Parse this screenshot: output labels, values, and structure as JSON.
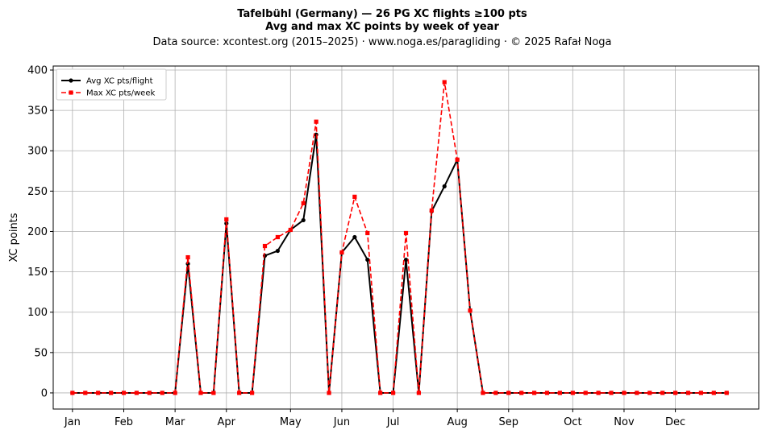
{
  "chart_data": {
    "type": "line",
    "title_line1": "Tafelbühl (Germany)  —  26 PG XC flights ≥100 pts",
    "title_line2": "Avg and max XC points by week of year",
    "subtitle": "Data source: xcontest.org (2015–2025)  ·  www.noga.es/paragliding  ·  © 2025 Rafał Noga",
    "xlabel": "",
    "ylabel": "XC points",
    "ylim": [
      -20,
      405
    ],
    "xlim_weeks": [
      -1.5,
      53.5
    ],
    "y_ticks": [
      0,
      50,
      100,
      150,
      200,
      250,
      300,
      350,
      400
    ],
    "x_ticks": [
      {
        "week": 0,
        "label": "Jan"
      },
      {
        "week": 4,
        "label": "Feb"
      },
      {
        "week": 8,
        "label": "Mar"
      },
      {
        "week": 12,
        "label": "Apr"
      },
      {
        "week": 17,
        "label": "May"
      },
      {
        "week": 21,
        "label": "Jun"
      },
      {
        "week": 25,
        "label": "Jul"
      },
      {
        "week": 30,
        "label": "Aug"
      },
      {
        "week": 34,
        "label": "Sep"
      },
      {
        "week": 39,
        "label": "Oct"
      },
      {
        "week": 43,
        "label": "Nov"
      },
      {
        "week": 47,
        "label": "Dec"
      }
    ],
    "grid": true,
    "legend_position": "top-left",
    "series": [
      {
        "name": "Avg XC pts/flight",
        "color": "#000000",
        "line_style": "solid",
        "marker": "circle",
        "x": [
          0,
          1,
          2,
          3,
          4,
          5,
          6,
          7,
          8,
          9,
          10,
          11,
          12,
          13,
          14,
          15,
          16,
          17,
          18,
          19,
          20,
          21,
          22,
          23,
          24,
          25,
          26,
          27,
          28,
          29,
          30,
          31,
          32,
          33,
          34,
          35,
          36,
          37,
          38,
          39,
          40,
          41,
          42,
          43,
          44,
          45,
          46,
          47,
          48,
          49,
          50,
          51
        ],
        "values": [
          0,
          0,
          0,
          0,
          0,
          0,
          0,
          0,
          0,
          160,
          0,
          0,
          210,
          0,
          0,
          170,
          176,
          202,
          214,
          320,
          0,
          174,
          193,
          165,
          0,
          0,
          165,
          0,
          225,
          256,
          289,
          102,
          0,
          0,
          0,
          0,
          0,
          0,
          0,
          0,
          0,
          0,
          0,
          0,
          0,
          0,
          0,
          0,
          0,
          0,
          0,
          0
        ]
      },
      {
        "name": "Max XC pts/week",
        "color": "#ff0000",
        "line_style": "dashed",
        "marker": "square",
        "x": [
          0,
          1,
          2,
          3,
          4,
          5,
          6,
          7,
          8,
          9,
          10,
          11,
          12,
          13,
          14,
          15,
          16,
          17,
          18,
          19,
          20,
          21,
          22,
          23,
          24,
          25,
          26,
          27,
          28,
          29,
          30,
          31,
          32,
          33,
          34,
          35,
          36,
          37,
          38,
          39,
          40,
          41,
          42,
          43,
          44,
          45,
          46,
          47,
          48,
          49,
          50,
          51
        ],
        "values": [
          0,
          0,
          0,
          0,
          0,
          0,
          0,
          0,
          0,
          168,
          0,
          0,
          215,
          0,
          0,
          182,
          193,
          202,
          235,
          336,
          0,
          174,
          243,
          198,
          0,
          0,
          198,
          0,
          226,
          385,
          289,
          102,
          0,
          0,
          0,
          0,
          0,
          0,
          0,
          0,
          0,
          0,
          0,
          0,
          0,
          0,
          0,
          0,
          0,
          0,
          0,
          0
        ]
      }
    ]
  }
}
